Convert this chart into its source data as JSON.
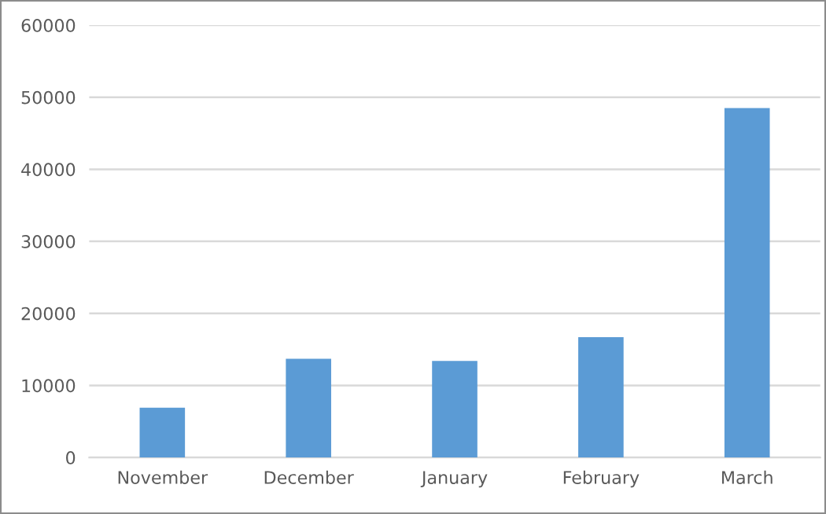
{
  "chart_data": {
    "type": "bar",
    "categories": [
      "November",
      "December",
      "January",
      "February",
      "March"
    ],
    "values": [
      6900,
      13700,
      13400,
      16700,
      48500
    ],
    "color": "#5b9bd5",
    "ylim": [
      0,
      60000
    ],
    "yticks": [
      0,
      10000,
      20000,
      30000,
      40000,
      50000,
      60000
    ],
    "grid": "y"
  }
}
